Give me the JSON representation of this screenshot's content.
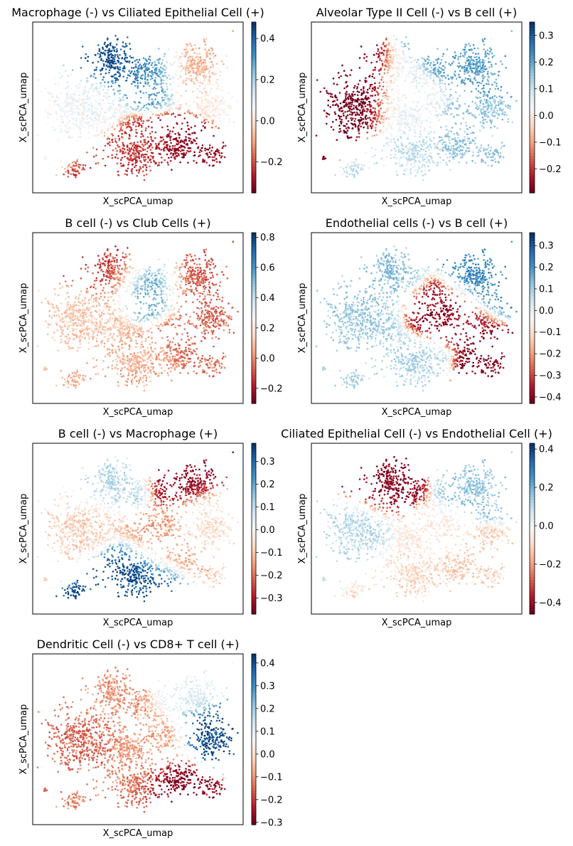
{
  "figure": {
    "colormap": "RdBu",
    "colors": {
      "neg": "#67001f",
      "mid": "#f7f7f7",
      "pos": "#053061"
    }
  },
  "chart_data": [
    {
      "type": "scatter",
      "title": "Macrophage (-) vs Ciliated Epithelial Cell (+)",
      "xlabel": "X_scPCA_umap",
      "ylabel": "X_scPCA_umap",
      "colorbar": {
        "range": [
          -0.35,
          0.48
        ],
        "ticks": [
          0.4,
          0.2,
          0.0,
          -0.2
        ],
        "tick_labels": [
          "0.4",
          "0.2",
          "0.0",
          "−0.2"
        ]
      },
      "clusters": [
        {
          "label": "upper-left lobe",
          "x": 0.4,
          "y": 0.77,
          "value": 0.42
        },
        {
          "label": "upper-center lobe",
          "x": 0.55,
          "y": 0.68,
          "value": 0.3
        },
        {
          "label": "left body",
          "x": 0.25,
          "y": 0.52,
          "value": 0.08
        },
        {
          "label": "upper-right group",
          "x": 0.78,
          "y": 0.7,
          "value": -0.08
        },
        {
          "label": "lower-center",
          "x": 0.52,
          "y": 0.25,
          "value": -0.22
        },
        {
          "label": "lower-right",
          "x": 0.72,
          "y": 0.28,
          "value": -0.3
        },
        {
          "label": "right tip",
          "x": 0.92,
          "y": 0.58,
          "value": 0.05
        }
      ]
    },
    {
      "type": "scatter",
      "title": "Alveolar Type II Cell (-) vs B cell (+)",
      "xlabel": "X_scPCA_umap",
      "ylabel": "X_scPCA_umap",
      "colorbar": {
        "range": [
          -0.29,
          0.35
        ],
        "ticks": [
          0.3,
          0.2,
          0.1,
          0.0,
          -0.1,
          -0.2
        ],
        "tick_labels": [
          "0.3",
          "0.2",
          "0.1",
          "0.0",
          "−0.1",
          "−0.2"
        ]
      },
      "clusters": [
        {
          "label": "left lobe",
          "x": 0.22,
          "y": 0.5,
          "value": -0.28
        },
        {
          "label": "center",
          "x": 0.45,
          "y": 0.48,
          "value": 0.05
        },
        {
          "label": "upper-right group",
          "x": 0.8,
          "y": 0.78,
          "value": 0.2
        },
        {
          "label": "lower-center",
          "x": 0.45,
          "y": 0.22,
          "value": 0.1
        },
        {
          "label": "right group",
          "x": 0.75,
          "y": 0.35,
          "value": 0.15
        }
      ]
    },
    {
      "type": "scatter",
      "title": "B cell (-) vs Club Cells (+)",
      "xlabel": "X_scPCA_umap",
      "ylabel": "X_scPCA_umap",
      "colorbar": {
        "range": [
          -0.3,
          0.83
        ],
        "ticks": [
          0.8,
          0.6,
          0.4,
          0.2,
          0.0,
          -0.2
        ],
        "tick_labels": [
          "0.8",
          "0.6",
          "0.4",
          "0.2",
          "0.0",
          "−0.2"
        ]
      },
      "clusters": [
        {
          "label": "upper-center lobe",
          "x": 0.55,
          "y": 0.7,
          "value": 0.55
        },
        {
          "label": "upper-left lobe",
          "x": 0.38,
          "y": 0.78,
          "value": -0.12
        },
        {
          "label": "left body",
          "x": 0.25,
          "y": 0.5,
          "value": 0.1
        },
        {
          "label": "upper-right group",
          "x": 0.78,
          "y": 0.72,
          "value": -0.08
        },
        {
          "label": "lower-center",
          "x": 0.48,
          "y": 0.22,
          "value": 0.05
        },
        {
          "label": "right group",
          "x": 0.8,
          "y": 0.4,
          "value": -0.05
        }
      ]
    },
    {
      "type": "scatter",
      "title": "Endothelial cells (-) vs B cell (+)",
      "xlabel": "X_scPCA_umap",
      "ylabel": "X_scPCA_umap",
      "colorbar": {
        "range": [
          -0.43,
          0.36
        ],
        "ticks": [
          0.3,
          0.2,
          0.1,
          0.0,
          -0.1,
          -0.2,
          -0.3,
          -0.4
        ],
        "tick_labels": [
          "0.3",
          "0.2",
          "0.1",
          "0.0",
          "−0.1",
          "−0.2",
          "−0.3",
          "−0.4"
        ]
      },
      "clusters": [
        {
          "label": "center-right group",
          "x": 0.62,
          "y": 0.55,
          "value": -0.38
        },
        {
          "label": "left body",
          "x": 0.25,
          "y": 0.5,
          "value": 0.1
        },
        {
          "label": "upper-right group",
          "x": 0.8,
          "y": 0.75,
          "value": 0.22
        },
        {
          "label": "upper-left lobe",
          "x": 0.35,
          "y": 0.75,
          "value": 0.12
        },
        {
          "label": "lower-center",
          "x": 0.45,
          "y": 0.22,
          "value": 0.08
        },
        {
          "label": "right tip",
          "x": 0.88,
          "y": 0.18,
          "value": -0.4
        }
      ]
    },
    {
      "type": "scatter",
      "title": "B cell (-) vs Macrophage (+)",
      "xlabel": "X_scPCA_umap",
      "ylabel": "X_scPCA_umap",
      "colorbar": {
        "range": [
          -0.37,
          0.38
        ],
        "ticks": [
          0.3,
          0.2,
          0.1,
          0.0,
          -0.1,
          -0.2,
          -0.3
        ],
        "tick_labels": [
          "0.3",
          "0.2",
          "0.1",
          "0.0",
          "−0.1",
          "−0.2",
          "−0.3"
        ]
      },
      "clusters": [
        {
          "label": "lower-center",
          "x": 0.48,
          "y": 0.25,
          "value": 0.33
        },
        {
          "label": "upper-right group",
          "x": 0.72,
          "y": 0.82,
          "value": -0.32
        },
        {
          "label": "left body",
          "x": 0.22,
          "y": 0.52,
          "value": -0.08
        },
        {
          "label": "upper-left lobe",
          "x": 0.38,
          "y": 0.78,
          "value": 0.1
        },
        {
          "label": "center",
          "x": 0.6,
          "y": 0.42,
          "value": -0.15
        },
        {
          "label": "right group",
          "x": 0.85,
          "y": 0.55,
          "value": -0.05
        }
      ]
    },
    {
      "type": "scatter",
      "title": "Ciliated Epithelial Cell (-) vs Endothelial Cell (+)",
      "xlabel": "X_scPCA_umap",
      "ylabel": "X_scPCA_umap",
      "colorbar": {
        "range": [
          -0.46,
          0.43
        ],
        "ticks": [
          0.4,
          0.2,
          0.0,
          -0.2,
          -0.4
        ],
        "tick_labels": [
          "0.4",
          "0.2",
          "0.0",
          "−0.2",
          "−0.4"
        ]
      },
      "clusters": [
        {
          "label": "upper-left lobe",
          "x": 0.35,
          "y": 0.75,
          "value": -0.42
        },
        {
          "label": "left body",
          "x": 0.22,
          "y": 0.5,
          "value": 0.1
        },
        {
          "label": "upper-right group",
          "x": 0.78,
          "y": 0.75,
          "value": 0.15
        },
        {
          "label": "center",
          "x": 0.55,
          "y": 0.45,
          "value": -0.05
        },
        {
          "label": "lower-center",
          "x": 0.5,
          "y": 0.25,
          "value": -0.1
        },
        {
          "label": "right group",
          "x": 0.75,
          "y": 0.32,
          "value": -0.12
        }
      ]
    },
    {
      "type": "scatter",
      "title": "Dendritic Cell (-) vs CD8+ T cell (+)",
      "xlabel": "X_scPCA_umap",
      "ylabel": "X_scPCA_umap",
      "colorbar": {
        "range": [
          -0.31,
          0.44
        ],
        "ticks": [
          0.4,
          0.3,
          0.2,
          0.1,
          0.0,
          -0.1,
          -0.2,
          -0.3
        ],
        "tick_labels": [
          "0.4",
          "0.3",
          "0.2",
          "0.1",
          "0.0",
          "−0.1",
          "−0.2",
          "−0.3"
        ]
      },
      "clusters": [
        {
          "label": "right group",
          "x": 0.88,
          "y": 0.55,
          "value": 0.4
        },
        {
          "label": "left body",
          "x": 0.22,
          "y": 0.5,
          "value": -0.15
        },
        {
          "label": "upper-left lobe",
          "x": 0.38,
          "y": 0.78,
          "value": -0.1
        },
        {
          "label": "center",
          "x": 0.55,
          "y": 0.48,
          "value": -0.08
        },
        {
          "label": "lower-center",
          "x": 0.48,
          "y": 0.22,
          "value": -0.12
        },
        {
          "label": "lower-right",
          "x": 0.65,
          "y": 0.2,
          "value": -0.28
        },
        {
          "label": "upper-right",
          "x": 0.75,
          "y": 0.8,
          "value": 0.1
        }
      ]
    }
  ]
}
